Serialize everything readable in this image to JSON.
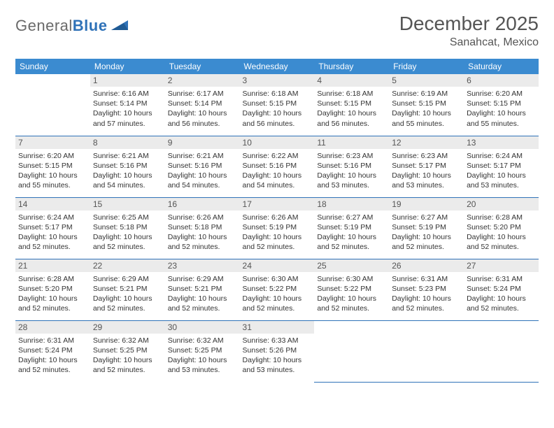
{
  "brand": {
    "general": "General",
    "blue": "Blue"
  },
  "title": "December 2025",
  "location": "Sanahcat, Mexico",
  "colors": {
    "header_bg": "#3b8bd0",
    "rule": "#2f72b8",
    "daynum_bg": "#ebebeb",
    "text": "#333333",
    "muted": "#555555"
  },
  "weekdays": [
    "Sunday",
    "Monday",
    "Tuesday",
    "Wednesday",
    "Thursday",
    "Friday",
    "Saturday"
  ],
  "first_weekday_index": 1,
  "days": [
    {
      "n": 1,
      "sunrise": "6:16 AM",
      "sunset": "5:14 PM",
      "daylight": "10 hours and 57 minutes."
    },
    {
      "n": 2,
      "sunrise": "6:17 AM",
      "sunset": "5:14 PM",
      "daylight": "10 hours and 56 minutes."
    },
    {
      "n": 3,
      "sunrise": "6:18 AM",
      "sunset": "5:15 PM",
      "daylight": "10 hours and 56 minutes."
    },
    {
      "n": 4,
      "sunrise": "6:18 AM",
      "sunset": "5:15 PM",
      "daylight": "10 hours and 56 minutes."
    },
    {
      "n": 5,
      "sunrise": "6:19 AM",
      "sunset": "5:15 PM",
      "daylight": "10 hours and 55 minutes."
    },
    {
      "n": 6,
      "sunrise": "6:20 AM",
      "sunset": "5:15 PM",
      "daylight": "10 hours and 55 minutes."
    },
    {
      "n": 7,
      "sunrise": "6:20 AM",
      "sunset": "5:15 PM",
      "daylight": "10 hours and 55 minutes."
    },
    {
      "n": 8,
      "sunrise": "6:21 AM",
      "sunset": "5:16 PM",
      "daylight": "10 hours and 54 minutes."
    },
    {
      "n": 9,
      "sunrise": "6:21 AM",
      "sunset": "5:16 PM",
      "daylight": "10 hours and 54 minutes."
    },
    {
      "n": 10,
      "sunrise": "6:22 AM",
      "sunset": "5:16 PM",
      "daylight": "10 hours and 54 minutes."
    },
    {
      "n": 11,
      "sunrise": "6:23 AM",
      "sunset": "5:16 PM",
      "daylight": "10 hours and 53 minutes."
    },
    {
      "n": 12,
      "sunrise": "6:23 AM",
      "sunset": "5:17 PM",
      "daylight": "10 hours and 53 minutes."
    },
    {
      "n": 13,
      "sunrise": "6:24 AM",
      "sunset": "5:17 PM",
      "daylight": "10 hours and 53 minutes."
    },
    {
      "n": 14,
      "sunrise": "6:24 AM",
      "sunset": "5:17 PM",
      "daylight": "10 hours and 52 minutes."
    },
    {
      "n": 15,
      "sunrise": "6:25 AM",
      "sunset": "5:18 PM",
      "daylight": "10 hours and 52 minutes."
    },
    {
      "n": 16,
      "sunrise": "6:26 AM",
      "sunset": "5:18 PM",
      "daylight": "10 hours and 52 minutes."
    },
    {
      "n": 17,
      "sunrise": "6:26 AM",
      "sunset": "5:19 PM",
      "daylight": "10 hours and 52 minutes."
    },
    {
      "n": 18,
      "sunrise": "6:27 AM",
      "sunset": "5:19 PM",
      "daylight": "10 hours and 52 minutes."
    },
    {
      "n": 19,
      "sunrise": "6:27 AM",
      "sunset": "5:19 PM",
      "daylight": "10 hours and 52 minutes."
    },
    {
      "n": 20,
      "sunrise": "6:28 AM",
      "sunset": "5:20 PM",
      "daylight": "10 hours and 52 minutes."
    },
    {
      "n": 21,
      "sunrise": "6:28 AM",
      "sunset": "5:20 PM",
      "daylight": "10 hours and 52 minutes."
    },
    {
      "n": 22,
      "sunrise": "6:29 AM",
      "sunset": "5:21 PM",
      "daylight": "10 hours and 52 minutes."
    },
    {
      "n": 23,
      "sunrise": "6:29 AM",
      "sunset": "5:21 PM",
      "daylight": "10 hours and 52 minutes."
    },
    {
      "n": 24,
      "sunrise": "6:30 AM",
      "sunset": "5:22 PM",
      "daylight": "10 hours and 52 minutes."
    },
    {
      "n": 25,
      "sunrise": "6:30 AM",
      "sunset": "5:22 PM",
      "daylight": "10 hours and 52 minutes."
    },
    {
      "n": 26,
      "sunrise": "6:31 AM",
      "sunset": "5:23 PM",
      "daylight": "10 hours and 52 minutes."
    },
    {
      "n": 27,
      "sunrise": "6:31 AM",
      "sunset": "5:24 PM",
      "daylight": "10 hours and 52 minutes."
    },
    {
      "n": 28,
      "sunrise": "6:31 AM",
      "sunset": "5:24 PM",
      "daylight": "10 hours and 52 minutes."
    },
    {
      "n": 29,
      "sunrise": "6:32 AM",
      "sunset": "5:25 PM",
      "daylight": "10 hours and 52 minutes."
    },
    {
      "n": 30,
      "sunrise": "6:32 AM",
      "sunset": "5:25 PM",
      "daylight": "10 hours and 53 minutes."
    },
    {
      "n": 31,
      "sunrise": "6:33 AM",
      "sunset": "5:26 PM",
      "daylight": "10 hours and 53 minutes."
    }
  ],
  "labels": {
    "sunrise": "Sunrise:",
    "sunset": "Sunset:",
    "daylight": "Daylight:"
  }
}
